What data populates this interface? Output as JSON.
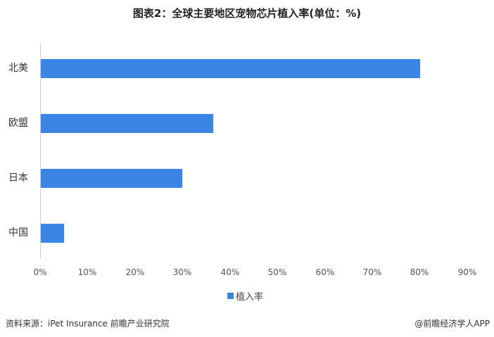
{
  "title": "图表2：全球主要地区宠物芯片植入率(单位：%)",
  "legend": {
    "label": "植入率",
    "color": "#3a84e4"
  },
  "source": "资料来源：iPet Insurance 前瞻产业研究院",
  "brand": "@前瞻经济学人APP",
  "x_ticks": [
    "0%",
    "10%",
    "20%",
    "30%",
    "40%",
    "50%",
    "60%",
    "70%",
    "80%",
    "90%"
  ],
  "categories": [
    "北美",
    "欧盟",
    "日本",
    "中国"
  ],
  "chart_data": {
    "type": "bar",
    "orientation": "horizontal",
    "title": "图表2：全球主要地区宠物芯片植入率(单位：%)",
    "categories": [
      "北美",
      "欧盟",
      "日本",
      "中国"
    ],
    "series": [
      {
        "name": "植入率",
        "values": [
          80,
          36.5,
          30,
          5
        ],
        "color": "#3a84e4"
      }
    ],
    "xlabel": "",
    "ylabel": "",
    "xlim": [
      0,
      90
    ],
    "x_ticks": [
      "0%",
      "10%",
      "20%",
      "30%",
      "40%",
      "50%",
      "60%",
      "70%",
      "80%",
      "90%"
    ],
    "grid": false,
    "legend_position": "bottom"
  }
}
